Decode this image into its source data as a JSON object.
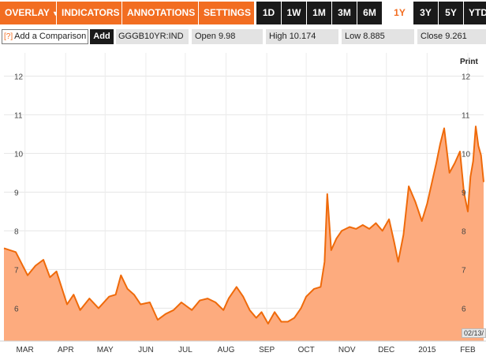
{
  "menu": {
    "overlay": "OVERLAY",
    "indicators": "INDICATORS",
    "annotations": "ANNOTATIONS",
    "settings": "SETTINGS",
    "caret": "▼"
  },
  "ranges": [
    "1D",
    "1W",
    "1M",
    "3M",
    "6M",
    "1Y",
    "3Y",
    "5Y",
    "YTD"
  ],
  "active_range": "1Y",
  "comparison": {
    "help": "[?]",
    "placeholder": "Add a Comparison",
    "add_label": "Add"
  },
  "quote": {
    "ticker": "GGGB10YR:IND",
    "open_label": "Open",
    "open": "9.98",
    "high_label": "High",
    "high": "10.174",
    "low_label": "Low",
    "low": "8.885",
    "close_label": "Close",
    "close": "9.261"
  },
  "print_label": "Print",
  "date_flag": "02/13/",
  "colors": {
    "accent": "#f26d21",
    "line": "#ef6a0a",
    "fill": "#fdab7e",
    "dark": "#1a1a1a"
  },
  "chart_data": {
    "type": "area",
    "title": "",
    "xlabel": "",
    "ylabel": "",
    "ylim": [
      5.15,
      12.6
    ],
    "yticks": [
      6,
      7,
      8,
      9,
      10,
      11,
      12
    ],
    "grid": true,
    "x_ticks": [
      "MAR",
      "APR",
      "MAY",
      "JUN",
      "JUL",
      "AUG",
      "SEP",
      "OCT",
      "NOV",
      "DEC",
      "2015",
      "FEB"
    ],
    "x_tick_dates": [
      "2014-03-01",
      "2014-04-01",
      "2014-05-01",
      "2014-06-01",
      "2014-07-01",
      "2014-08-01",
      "2014-09-01",
      "2014-10-01",
      "2014-11-01",
      "2014-12-01",
      "2015-01-01",
      "2015-02-01"
    ],
    "series": [
      {
        "x": [
          "2014-02-13",
          "2014-02-22",
          "2014-03-03",
          "2014-03-09",
          "2014-03-15",
          "2014-03-20",
          "2014-03-25",
          "2014-04-02",
          "2014-04-07",
          "2014-04-12",
          "2014-04-19",
          "2014-04-26",
          "2014-05-04",
          "2014-05-09",
          "2014-05-13",
          "2014-05-18",
          "2014-05-23",
          "2014-05-28",
          "2014-06-04",
          "2014-06-10",
          "2014-06-16",
          "2014-06-22",
          "2014-06-28",
          "2014-07-06",
          "2014-07-12",
          "2014-07-18",
          "2014-07-24",
          "2014-07-30",
          "2014-08-03",
          "2014-08-09",
          "2014-08-14",
          "2014-08-19",
          "2014-08-24",
          "2014-08-28",
          "2014-09-02",
          "2014-09-07",
          "2014-09-12",
          "2014-09-17",
          "2014-09-22",
          "2014-09-27",
          "2014-10-01",
          "2014-10-07",
          "2014-10-12",
          "2014-10-15",
          "2014-10-17",
          "2014-10-20",
          "2014-10-24",
          "2014-10-28",
          "2014-11-03",
          "2014-11-08",
          "2014-11-13",
          "2014-11-18",
          "2014-11-23",
          "2014-11-28",
          "2014-12-03",
          "2014-12-07",
          "2014-12-10",
          "2014-12-14",
          "2014-12-18",
          "2014-12-23",
          "2014-12-28",
          "2015-01-01",
          "2015-01-05",
          "2015-01-08",
          "2015-01-11",
          "2015-01-14",
          "2015-01-18",
          "2015-01-22",
          "2015-01-26",
          "2015-01-29",
          "2015-02-01",
          "2015-02-03",
          "2015-02-05",
          "2015-02-07",
          "2015-02-09",
          "2015-02-11",
          "2015-02-13"
        ],
        "y": [
          7.55,
          7.45,
          6.85,
          7.1,
          7.25,
          6.8,
          6.95,
          6.1,
          6.35,
          5.95,
          6.25,
          6.0,
          6.3,
          6.35,
          6.85,
          6.5,
          6.35,
          6.1,
          6.15,
          5.7,
          5.85,
          5.95,
          6.15,
          5.95,
          6.2,
          6.25,
          6.15,
          5.95,
          6.25,
          6.55,
          6.3,
          5.95,
          5.75,
          5.9,
          5.6,
          5.9,
          5.65,
          5.65,
          5.75,
          6.0,
          6.3,
          6.5,
          6.55,
          7.2,
          8.95,
          7.5,
          7.8,
          8.0,
          8.1,
          8.05,
          8.15,
          8.05,
          8.2,
          8.0,
          8.3,
          7.7,
          7.2,
          7.9,
          9.15,
          8.75,
          8.25,
          8.7,
          9.3,
          9.75,
          10.25,
          10.65,
          9.5,
          9.75,
          10.05,
          9.0,
          8.5,
          9.4,
          9.8,
          10.7,
          10.2,
          9.95,
          9.261
        ]
      }
    ]
  }
}
